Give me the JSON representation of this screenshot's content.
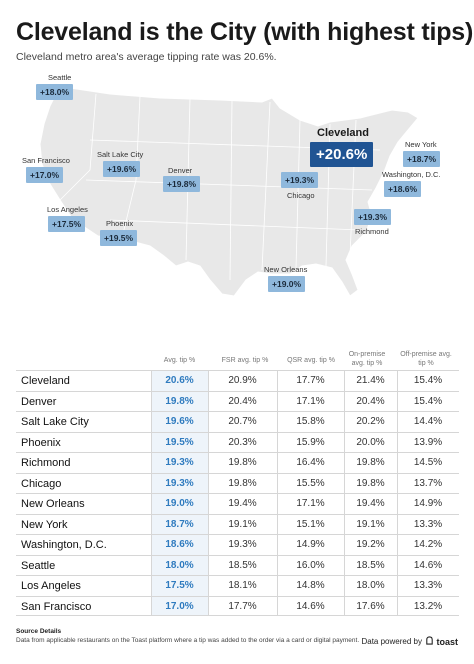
{
  "header": {
    "title": "Cleveland is the City (with highest tips)",
    "subtitle": "Cleveland metro area's average tipping rate was 20.6%."
  },
  "map": {
    "callouts": [
      {
        "city": "Seattle",
        "tip": "+18.0%"
      },
      {
        "city": "San Francisco",
        "tip": "+17.0%"
      },
      {
        "city": "Salt Lake City",
        "tip": "+19.6%"
      },
      {
        "city": "Denver",
        "tip": "+19.8%"
      },
      {
        "city": "Los Angeles",
        "tip": "+17.5%"
      },
      {
        "city": "Phoenix",
        "tip": "+19.5%"
      },
      {
        "city": "Cleveland",
        "tip": "+20.6%"
      },
      {
        "city": "Chicago",
        "tip": "+19.3%"
      },
      {
        "city": "New York",
        "tip": "+18.7%"
      },
      {
        "city": "Washington, D.C.",
        "tip": "+18.6%"
      },
      {
        "city": "Richmond",
        "tip": "+19.3%"
      },
      {
        "city": "New Orleans",
        "tip": "+19.0%"
      }
    ],
    "colors": {
      "badge": "#8fb8dc",
      "highlight": "#205493",
      "land": "#e8e8e8"
    }
  },
  "chart_data": {
    "type": "table",
    "columns": [
      "Avg. tip %",
      "FSR avg. tip %",
      "QSR avg. tip %",
      "On-premise avg. tip %",
      "Off-premise avg. tip %"
    ],
    "rows": [
      {
        "city": "Cleveland",
        "values": [
          "20.6%",
          "20.9%",
          "17.7%",
          "21.4%",
          "15.4%"
        ]
      },
      {
        "city": "Denver",
        "values": [
          "19.8%",
          "20.4%",
          "17.1%",
          "20.4%",
          "15.4%"
        ]
      },
      {
        "city": "Salt Lake City",
        "values": [
          "19.6%",
          "20.7%",
          "15.8%",
          "20.2%",
          "14.4%"
        ]
      },
      {
        "city": "Phoenix",
        "values": [
          "19.5%",
          "20.3%",
          "15.9%",
          "20.0%",
          "13.9%"
        ]
      },
      {
        "city": "Richmond",
        "values": [
          "19.3%",
          "19.8%",
          "16.4%",
          "19.8%",
          "14.5%"
        ]
      },
      {
        "city": "Chicago",
        "values": [
          "19.3%",
          "19.8%",
          "15.5%",
          "19.8%",
          "13.7%"
        ]
      },
      {
        "city": "New Orleans",
        "values": [
          "19.0%",
          "19.4%",
          "17.1%",
          "19.4%",
          "14.9%"
        ]
      },
      {
        "city": "New York",
        "values": [
          "18.7%",
          "19.1%",
          "15.1%",
          "19.1%",
          "13.3%"
        ]
      },
      {
        "city": "Washington, D.C.",
        "values": [
          "18.6%",
          "19.3%",
          "14.9%",
          "19.2%",
          "14.2%"
        ]
      },
      {
        "city": "Seattle",
        "values": [
          "18.0%",
          "18.5%",
          "16.0%",
          "18.5%",
          "14.6%"
        ]
      },
      {
        "city": "Los Angeles",
        "values": [
          "17.5%",
          "18.1%",
          "14.8%",
          "18.0%",
          "13.3%"
        ]
      },
      {
        "city": "San Francisco",
        "values": [
          "17.0%",
          "17.7%",
          "14.6%",
          "17.6%",
          "13.2%"
        ]
      }
    ]
  },
  "footer": {
    "source_heading": "Source Details",
    "source_text": "Data from applicable restaurants on the Toast platform where a tip was added to the order via a card or digital payment.",
    "powered_by": "Data powered by",
    "brand": "toast"
  }
}
